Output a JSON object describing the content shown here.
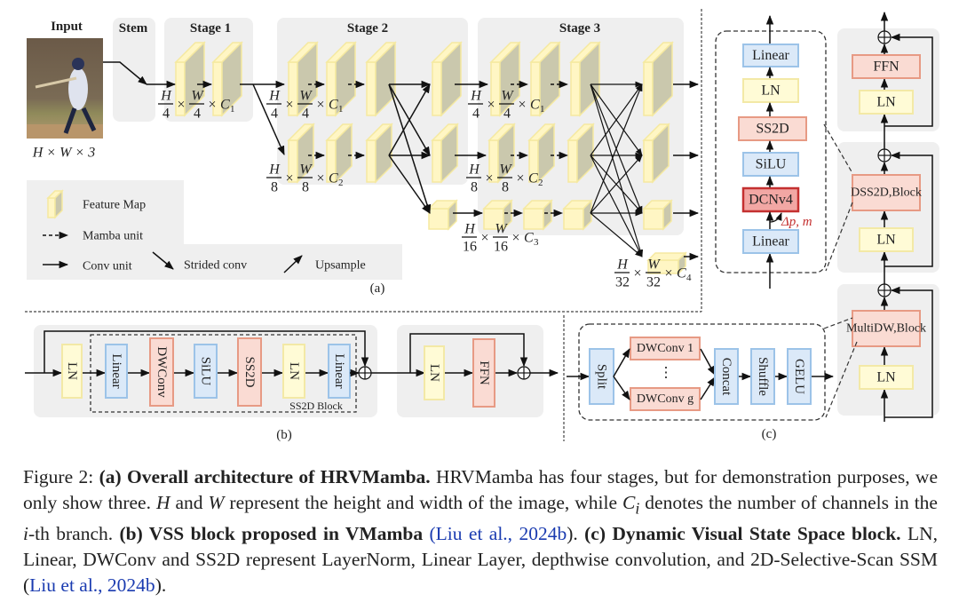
{
  "figure": {
    "input_label": "Input",
    "input_dims": "H × W × 3",
    "stem_label": "Stem",
    "stage_labels": [
      "Stage 1",
      "Stage 2",
      "Stage 3"
    ],
    "dims": [
      {
        "h": "H",
        "w": "W",
        "den": "4",
        "c": "C",
        "sub": "1"
      },
      {
        "h": "H",
        "w": "W",
        "den": "4",
        "c": "C",
        "sub": "1"
      },
      {
        "h": "H",
        "w": "W",
        "den": "4",
        "c": "C",
        "sub": "1"
      },
      {
        "h": "H",
        "w": "W",
        "den": "8",
        "c": "C",
        "sub": "2"
      },
      {
        "h": "H",
        "w": "W",
        "den": "8",
        "c": "C",
        "sub": "2"
      },
      {
        "h": "H",
        "w": "W",
        "den": "16",
        "c": "C",
        "sub": "3"
      },
      {
        "h": "H",
        "w": "W",
        "den": "32",
        "c": "C",
        "sub": "4"
      }
    ],
    "times": "×",
    "legend": {
      "feature_map": "Feature Map",
      "mamba_unit": "Mamba unit",
      "conv_unit": "Conv unit",
      "strided_conv": "Strided conv",
      "upsample": "Upsample"
    },
    "panel_a_label": "(a)",
    "panel_b_label": "(b)",
    "panel_c_label": "(c)",
    "vss_block": [
      "LN",
      "Linear",
      "DWConv",
      "SiLU",
      "SS2D",
      "LN",
      "Linear"
    ],
    "ss2d_block_label": "SS2D Block",
    "ffn_block": [
      "LN",
      "FFN"
    ],
    "multidw": {
      "split": "Split",
      "dwconv_1": "DWConv 1",
      "ellipsis": "⋮",
      "dwconv_g": "DWConv g",
      "concat": "Concat",
      "shuffle": "Shuffle",
      "gelu": "GELU"
    },
    "dss2d_detail": [
      "Linear",
      "LN",
      "SS2D",
      "SiLU",
      "DCNv4",
      "Linear"
    ],
    "offset_label": "Δp, m",
    "dvss_column": {
      "ffn": "FFN",
      "ln_top": "LN",
      "dss2d_block": [
        "DSS2D",
        "Block"
      ],
      "ln_mid": "LN",
      "multidw_block": [
        "MultiDW",
        "Block"
      ],
      "ln_bottom": "LN"
    },
    "plus": "⊕"
  },
  "colors": {
    "blue_fill": "#dbe9f8",
    "blue_stroke": "#9cc3e8",
    "yellow_fill": "#fffbd6",
    "yellow_stroke": "#f3e9a6",
    "red_fill": "#fadbd3",
    "red_stroke": "#e79a84",
    "dcn_fill": "#f2a7a4",
    "dcn_stroke": "#c43030",
    "panel_gray": "#efefef",
    "slab_side": "#cac8ad",
    "offset_red": "#c43030",
    "cite_blue": "#1a3bb0"
  },
  "caption": {
    "prefix": "Figure 2: ",
    "a_bold": "(a) Overall architecture of HRVMamba.",
    "a_text_1": " HRVMamba has four stages, but for demonstration purposes, we only show three. ",
    "H": "H",
    "and": " and ",
    "W": "W",
    "a_text_2": " represent the height and width of the image, while ",
    "Ci": "C",
    "Ci_sub": "i",
    "a_text_3": " denotes the number of channels in the ",
    "i": "i",
    "a_text_4": "-th branch. ",
    "b_bold": "(b) VSS block proposed in VMamba",
    "open_paren": " (",
    "cite_1": "Liu et al., 2024b",
    "close_paren_1": "). ",
    "c_bold": "(c) Dynamic Visual State Space block.",
    "c_text": " LN, Linear, DWConv and SS2D represent LayerNorm, Linear Layer, depthwise convolution, and 2D-Selective-Scan SSM (",
    "cite_2": "Liu et al., 2024b",
    "close_paren_2": ")."
  }
}
